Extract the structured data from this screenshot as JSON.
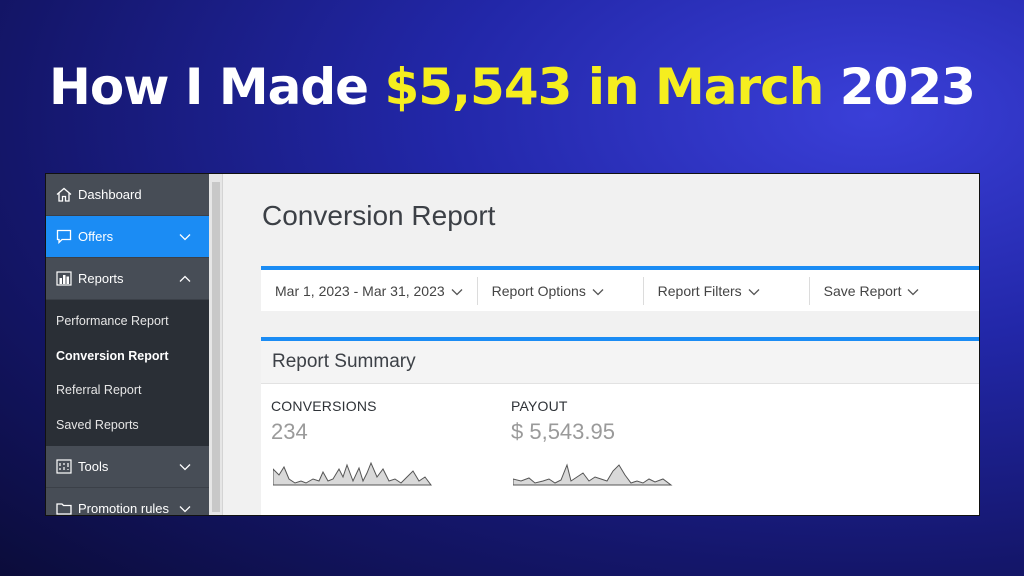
{
  "headline": {
    "part1": "How I Made ",
    "highlight": "$5,543 in March",
    "part2": " 2023"
  },
  "sidebar": {
    "items": [
      {
        "label": "Dashboard",
        "icon": "home-icon"
      },
      {
        "label": "Offers",
        "icon": "chat-bubble-icon"
      },
      {
        "label": "Reports",
        "icon": "bar-chart-icon"
      },
      {
        "label": "Tools",
        "icon": "tools-icon"
      },
      {
        "label": "Promotion rules",
        "icon": "folder-icon"
      }
    ],
    "sub_items": [
      "Performance Report",
      "Conversion Report",
      "Referral Report",
      "Saved Reports"
    ]
  },
  "main": {
    "page_title": "Conversion Report",
    "toolbar": {
      "date_range": "Mar 1, 2023 - Mar 31, 2023",
      "report_options": "Report Options",
      "report_filters": "Report Filters",
      "save_report": "Save Report"
    },
    "summary": {
      "title": "Report Summary",
      "conversions_label": "CONVERSIONS",
      "conversions_value": "234",
      "payout_label": "PAYOUT",
      "payout_value": "$ 5,543.95"
    }
  },
  "colors": {
    "accent": "#1b8cf4",
    "highlight": "#f5ee1f",
    "sidebar_bg": "#474d56",
    "subnav_bg": "#2a2f36"
  }
}
